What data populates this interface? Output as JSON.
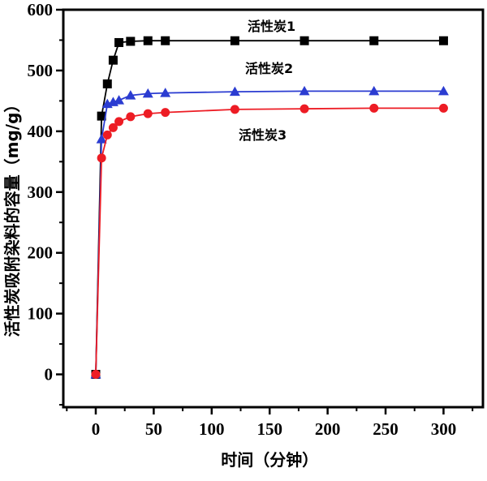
{
  "figure": {
    "background": "#ffffff",
    "axis_color": "#000000"
  },
  "chart_data": {
    "type": "line",
    "title": "",
    "xlabel": "时间（分钟）",
    "ylabel": "活性炭吸附染料的容量（mg/g）",
    "xlim": [
      -28,
      334
    ],
    "ylim": [
      -54,
      600
    ],
    "x_ticks": [
      0,
      50,
      100,
      150,
      200,
      250,
      300
    ],
    "x_minor_step": 25,
    "y_ticks": [
      0,
      100,
      200,
      300,
      400,
      500,
      600
    ],
    "y_minor_step": 50,
    "grid": false,
    "legend_position": "inline-annotations",
    "x": [
      0,
      5,
      10,
      15,
      20,
      30,
      45,
      60,
      120,
      180,
      240,
      300
    ],
    "series": [
      {
        "name": "活性炭1",
        "marker": "square",
        "color": "#000000",
        "values": [
          0,
          425,
          478,
          517,
          546,
          548,
          549,
          549,
          549,
          549,
          549,
          549
        ],
        "label_pos": [
          305,
          38
        ]
      },
      {
        "name": "活性炭2",
        "marker": "triangle",
        "color": "#2b3cd1",
        "values": [
          0,
          387,
          445,
          448,
          451,
          459,
          462,
          463,
          465,
          466,
          466,
          466
        ],
        "label_pos": [
          302,
          90
        ]
      },
      {
        "name": "活性炭3",
        "marker": "circle",
        "color": "#ed1c24",
        "values": [
          0,
          356,
          394,
          406,
          416,
          424,
          429,
          431,
          436,
          437,
          438,
          438
        ],
        "label_pos": [
          294,
          172
        ]
      }
    ]
  }
}
